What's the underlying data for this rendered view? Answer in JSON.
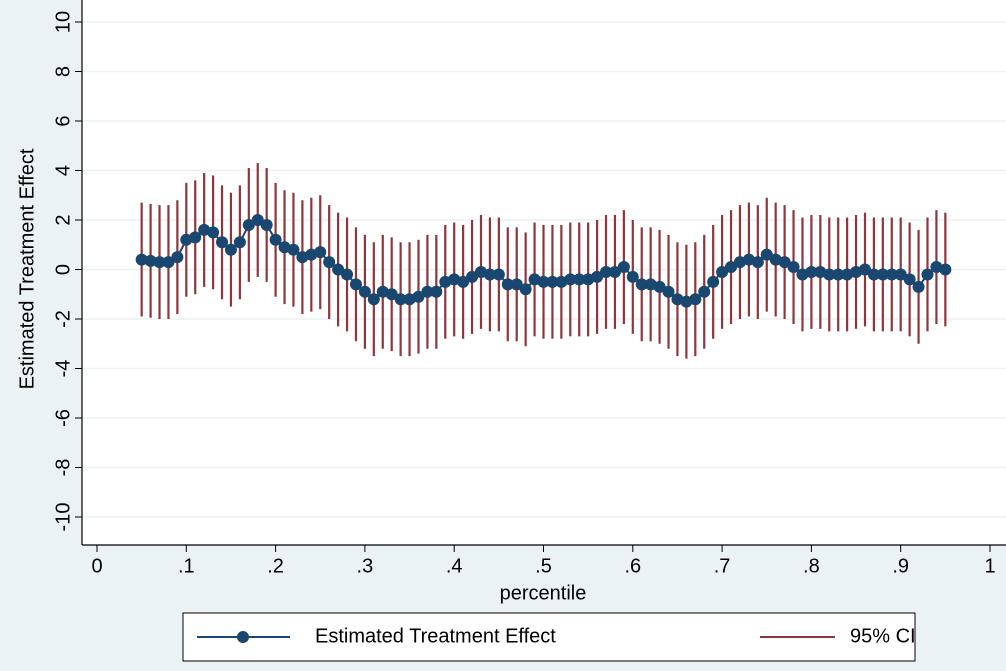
{
  "chart_data": {
    "type": "ci-scatter",
    "y_label": "Estimated Treatment Effect",
    "x_label": "percentile",
    "xlim": [
      0,
      1
    ],
    "xticks": [
      0,
      {
        "value": 0.1,
        "label": ".1"
      },
      {
        "value": 0.2,
        "label": ".2"
      },
      {
        "value": 0.3,
        "label": ".3"
      },
      {
        "value": 0.4,
        "label": ".4"
      },
      {
        "value": 0.5,
        "label": ".5"
      },
      {
        "value": 0.6,
        "label": ".6"
      },
      {
        "value": 0.7,
        "label": ".7"
      },
      {
        "value": 0.8,
        "label": ".8"
      },
      {
        "value": 0.9,
        "label": ".9"
      },
      1
    ],
    "ylim": [
      -10,
      10
    ],
    "yticks": [
      -10,
      -8,
      -6,
      -4,
      -2,
      0,
      2,
      4,
      6,
      8,
      10
    ],
    "grid": true,
    "x": [
      0.05,
      0.06,
      0.07,
      0.08,
      0.09,
      0.1,
      0.11,
      0.12,
      0.13,
      0.14,
      0.15,
      0.16,
      0.17,
      0.18,
      0.19,
      0.2,
      0.21,
      0.22,
      0.23,
      0.24,
      0.25,
      0.26,
      0.27,
      0.28,
      0.29,
      0.3,
      0.31,
      0.32,
      0.33,
      0.34,
      0.35,
      0.36,
      0.37,
      0.38,
      0.39,
      0.4,
      0.41,
      0.42,
      0.43,
      0.44,
      0.45,
      0.46,
      0.47,
      0.48,
      0.49,
      0.5,
      0.51,
      0.52,
      0.53,
      0.54,
      0.55,
      0.56,
      0.57,
      0.58,
      0.59,
      0.6,
      0.61,
      0.62,
      0.63,
      0.64,
      0.65,
      0.66,
      0.67,
      0.68,
      0.69,
      0.7,
      0.71,
      0.72,
      0.73,
      0.74,
      0.75,
      0.76,
      0.77,
      0.78,
      0.79,
      0.8,
      0.81,
      0.82,
      0.83,
      0.84,
      0.85,
      0.86,
      0.87,
      0.88,
      0.89,
      0.9,
      0.91,
      0.92,
      0.93,
      0.94,
      0.95
    ],
    "series": [
      {
        "name": "Estimated Treatment Effect",
        "color": "#1a476f",
        "values": [
          0.4,
          0.35,
          0.3,
          0.3,
          0.5,
          1.2,
          1.3,
          1.6,
          1.5,
          1.1,
          0.8,
          1.1,
          1.8,
          2.0,
          1.8,
          1.2,
          0.9,
          0.8,
          0.5,
          0.6,
          0.7,
          0.3,
          0.0,
          -0.2,
          -0.6,
          -0.9,
          -1.2,
          -0.9,
          -1.0,
          -1.2,
          -1.2,
          -1.1,
          -0.9,
          -0.9,
          -0.5,
          -0.4,
          -0.5,
          -0.3,
          -0.1,
          -0.2,
          -0.2,
          -0.6,
          -0.6,
          -0.8,
          -0.4,
          -0.5,
          -0.5,
          -0.5,
          -0.4,
          -0.4,
          -0.4,
          -0.3,
          -0.1,
          -0.1,
          0.1,
          -0.3,
          -0.6,
          -0.6,
          -0.7,
          -0.9,
          -1.2,
          -1.3,
          -1.2,
          -0.9,
          -0.5,
          -0.1,
          0.1,
          0.3,
          0.4,
          0.3,
          0.6,
          0.4,
          0.3,
          0.1,
          -0.2,
          -0.1,
          -0.1,
          -0.2,
          -0.2,
          -0.2,
          -0.1,
          0.0,
          -0.2,
          -0.2,
          -0.2,
          -0.2,
          -0.4,
          -0.7,
          -0.2,
          0.1,
          0.0
        ]
      },
      {
        "name": "95% CI",
        "color": "#90353b",
        "lower": [
          -1.9,
          -1.95,
          -2.0,
          -2.0,
          -1.8,
          -1.1,
          -1.0,
          -0.7,
          -0.8,
          -1.2,
          -1.5,
          -1.2,
          -0.5,
          -0.3,
          -0.5,
          -1.1,
          -1.4,
          -1.5,
          -1.8,
          -1.7,
          -1.6,
          -2.0,
          -2.3,
          -2.5,
          -2.9,
          -3.2,
          -3.5,
          -3.2,
          -3.3,
          -3.5,
          -3.5,
          -3.4,
          -3.2,
          -3.2,
          -2.8,
          -2.7,
          -2.8,
          -2.6,
          -2.4,
          -2.5,
          -2.5,
          -2.9,
          -2.9,
          -3.1,
          -2.7,
          -2.8,
          -2.8,
          -2.8,
          -2.7,
          -2.7,
          -2.7,
          -2.6,
          -2.4,
          -2.4,
          -2.2,
          -2.6,
          -2.9,
          -2.9,
          -3.0,
          -3.2,
          -3.5,
          -3.6,
          -3.5,
          -3.2,
          -2.8,
          -2.4,
          -2.2,
          -2.0,
          -1.9,
          -2.0,
          -1.7,
          -1.9,
          -2.0,
          -2.2,
          -2.5,
          -2.4,
          -2.4,
          -2.5,
          -2.5,
          -2.5,
          -2.4,
          -2.3,
          -2.5,
          -2.5,
          -2.5,
          -2.5,
          -2.7,
          -3.0,
          -2.5,
          -2.2,
          -2.3
        ],
        "upper": [
          2.7,
          2.65,
          2.6,
          2.6,
          2.8,
          3.5,
          3.6,
          3.9,
          3.8,
          3.4,
          3.1,
          3.4,
          4.1,
          4.3,
          4.1,
          3.5,
          3.2,
          3.1,
          2.8,
          2.9,
          3.0,
          2.6,
          2.3,
          2.1,
          1.7,
          1.4,
          1.1,
          1.4,
          1.3,
          1.1,
          1.1,
          1.2,
          1.4,
          1.4,
          1.8,
          1.9,
          1.8,
          2.0,
          2.2,
          2.1,
          2.1,
          1.7,
          1.7,
          1.5,
          1.9,
          1.8,
          1.8,
          1.8,
          1.9,
          1.9,
          1.9,
          2.0,
          2.2,
          2.2,
          2.4,
          2.0,
          1.7,
          1.7,
          1.6,
          1.4,
          1.1,
          1.0,
          1.1,
          1.4,
          1.8,
          2.2,
          2.4,
          2.6,
          2.7,
          2.6,
          2.9,
          2.7,
          2.6,
          2.4,
          2.1,
          2.2,
          2.2,
          2.1,
          2.1,
          2.1,
          2.2,
          2.3,
          2.1,
          2.1,
          2.1,
          2.1,
          1.9,
          1.6,
          2.1,
          2.4,
          2.3
        ]
      }
    ]
  }
}
